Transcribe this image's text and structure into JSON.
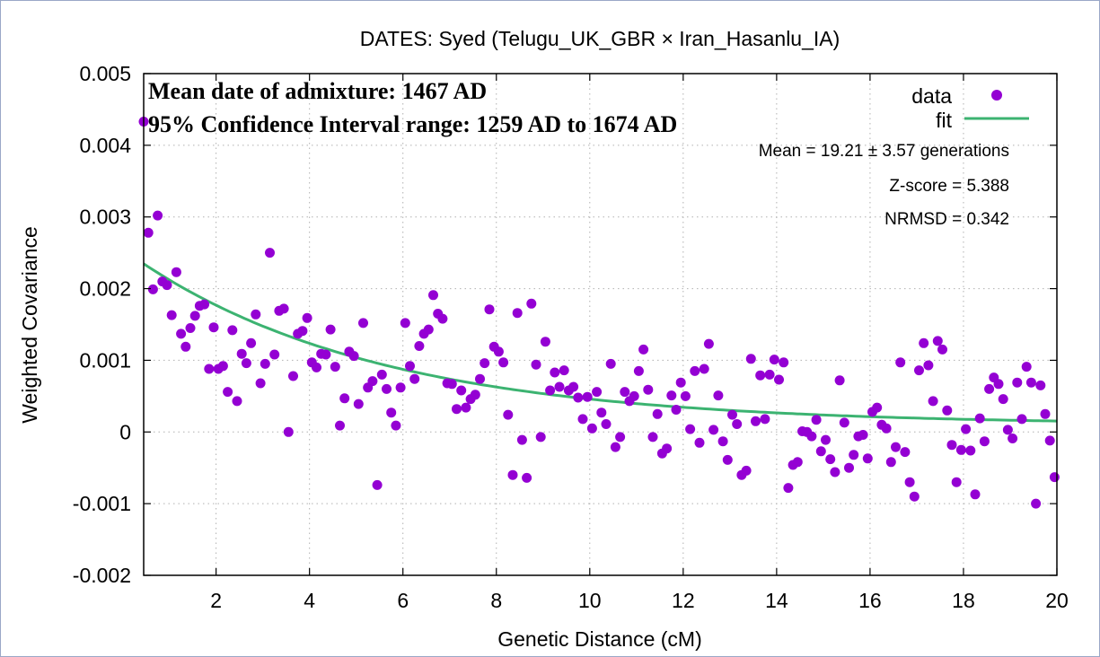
{
  "chart_data": {
    "type": "scatter",
    "title": "DATES: Syed (Telugu_UK_GBR × Iran_Hasanlu_IA)",
    "xlabel": "Genetic Distance (cM)",
    "ylabel": "Weighted Covariance",
    "xlim": [
      0.45,
      20
    ],
    "ylim": [
      -0.002,
      0.005
    ],
    "grid": true,
    "x_ticks": [
      2,
      4,
      6,
      8,
      10,
      12,
      14,
      16,
      18,
      20
    ],
    "x_tick_labels": [
      "2",
      "4",
      "6",
      "8",
      "10",
      "12",
      "14",
      "16",
      "18",
      "20"
    ],
    "y_ticks": [
      -0.002,
      -0.001,
      0,
      0.001,
      0.002,
      0.003,
      0.004,
      0.005
    ],
    "y_tick_labels": [
      "-0.002",
      "-0.001",
      "0",
      "0.001",
      "0.002",
      "0.003",
      "0.004",
      "0.005"
    ],
    "legend": {
      "placement": "top-right",
      "entries": [
        "data",
        "fit"
      ]
    },
    "annotations": {
      "admixture_date": "Mean date of admixture: 1467 AD",
      "confidence_interval": "95% Confidence Interval range: 1259 AD to 1674 AD",
      "mean": "Mean = 19.21 ± 3.57 generations",
      "zscore": "Z-score = 5.388",
      "nrmsd": "NRMSD = 0.342"
    },
    "colors": {
      "data": "#9400d3",
      "fit": "#3cb371",
      "grid": "#b0b0b0"
    },
    "fit": {
      "model": "exponential",
      "amplitude": 0.00245,
      "rate": 0.1921,
      "offset": 0.0001
    },
    "series": [
      {
        "name": "data",
        "x": [
          0.45,
          0.55,
          0.65,
          0.75,
          0.85,
          0.95,
          1.05,
          1.15,
          1.25,
          1.35,
          1.45,
          1.55,
          1.65,
          1.75,
          1.85,
          1.95,
          2.05,
          2.15,
          2.25,
          2.35,
          2.45,
          2.55,
          2.65,
          2.75,
          2.85,
          2.95,
          3.05,
          3.15,
          3.25,
          3.35,
          3.45,
          3.55,
          3.65,
          3.75,
          3.85,
          3.95,
          4.05,
          4.15,
          4.25,
          4.35,
          4.45,
          4.55,
          4.65,
          4.75,
          4.85,
          4.95,
          5.05,
          5.15,
          5.25,
          5.35,
          5.45,
          5.55,
          5.65,
          5.75,
          5.85,
          5.95,
          6.05,
          6.15,
          6.25,
          6.35,
          6.45,
          6.55,
          6.65,
          6.75,
          6.85,
          6.95,
          7.05,
          7.15,
          7.25,
          7.35,
          7.45,
          7.55,
          7.65,
          7.75,
          7.85,
          7.95,
          8.05,
          8.15,
          8.25,
          8.35,
          8.45,
          8.55,
          8.65,
          8.75,
          8.85,
          8.95,
          9.05,
          9.15,
          9.25,
          9.35,
          9.45,
          9.55,
          9.65,
          9.75,
          9.85,
          9.95,
          10.05,
          10.15,
          10.25,
          10.35,
          10.45,
          10.55,
          10.65,
          10.75,
          10.85,
          10.95,
          11.05,
          11.15,
          11.25,
          11.35,
          11.45,
          11.55,
          11.65,
          11.75,
          11.85,
          11.95,
          12.05,
          12.15,
          12.25,
          12.35,
          12.45,
          12.55,
          12.65,
          12.75,
          12.85,
          12.95,
          13.05,
          13.15,
          13.25,
          13.35,
          13.45,
          13.55,
          13.65,
          13.75,
          13.85,
          13.95,
          14.05,
          14.15,
          14.25,
          14.35,
          14.45,
          14.55,
          14.65,
          14.75,
          14.85,
          14.95,
          15.05,
          15.15,
          15.25,
          15.35,
          15.45,
          15.55,
          15.65,
          15.75,
          15.85,
          15.95,
          16.05,
          16.15,
          16.25,
          16.35,
          16.45,
          16.55,
          16.65,
          16.75,
          16.85,
          16.95,
          17.05,
          17.15,
          17.25,
          17.35,
          17.45,
          17.55,
          17.65,
          17.75,
          17.85,
          17.95,
          18.05,
          18.15,
          18.25,
          18.35,
          18.45,
          18.55,
          18.65,
          18.75,
          18.85,
          18.95,
          19.05,
          19.15,
          19.25,
          19.35,
          19.45,
          19.55,
          19.65,
          19.75,
          19.85,
          19.95
        ],
        "y": [
          0.00433,
          0.00278,
          0.00199,
          0.00302,
          0.0021,
          0.00205,
          0.00163,
          0.00223,
          0.00137,
          0.00119,
          0.00145,
          0.00162,
          0.00176,
          0.00178,
          0.00088,
          0.00146,
          0.00088,
          0.00092,
          0.00056,
          0.00142,
          0.00043,
          0.00109,
          0.00096,
          0.00124,
          0.00164,
          0.00068,
          0.00095,
          0.0025,
          0.00108,
          0.00169,
          0.00172,
          0.0,
          0.00078,
          0.00137,
          0.00141,
          0.00159,
          0.00097,
          0.0009,
          0.00109,
          0.00108,
          0.00143,
          0.00091,
          9e-05,
          0.00047,
          0.00112,
          0.00106,
          0.00039,
          0.00152,
          0.00062,
          0.00071,
          -0.00074,
          0.0008,
          0.0006,
          0.00027,
          9e-05,
          0.00062,
          0.00152,
          0.00092,
          0.00074,
          0.0012,
          0.00137,
          0.00143,
          0.00191,
          0.00165,
          0.00158,
          0.00068,
          0.00067,
          0.00032,
          0.00058,
          0.00034,
          0.00046,
          0.00052,
          0.00074,
          0.00096,
          0.00171,
          0.00119,
          0.00112,
          0.00097,
          0.00024,
          -0.0006,
          0.00166,
          -0.00011,
          -0.00064,
          0.00179,
          0.00094,
          -7e-05,
          0.00126,
          0.00058,
          0.00083,
          0.00063,
          0.00086,
          0.00058,
          0.00063,
          0.00048,
          0.00018,
          0.00049,
          5e-05,
          0.00056,
          0.00027,
          0.00011,
          0.00095,
          -0.00021,
          -7e-05,
          0.00056,
          0.00043,
          0.0005,
          0.00085,
          0.00115,
          0.00059,
          -7e-05,
          0.00025,
          -0.0003,
          -0.00023,
          0.00051,
          0.00031,
          0.00069,
          0.0005,
          4e-05,
          0.00085,
          -0.00015,
          0.00088,
          0.00123,
          3e-05,
          0.00051,
          -0.00013,
          -0.00039,
          0.00024,
          0.00011,
          -0.0006,
          -0.00054,
          0.00102,
          0.00015,
          0.00079,
          0.00018,
          0.0008,
          0.00101,
          0.00073,
          0.00097,
          -0.00078,
          -0.00046,
          -0.00042,
          1e-05,
          0.0,
          -6e-05,
          0.00017,
          -0.00027,
          -0.00011,
          -0.00038,
          -0.00056,
          0.00072,
          0.00013,
          -0.0005,
          -0.00032,
          -6e-05,
          -4e-05,
          -0.00037,
          0.00028,
          0.00034,
          0.0001,
          5e-05,
          -0.00042,
          -0.00021,
          0.00097,
          -0.00028,
          -0.0007,
          -0.0009,
          0.00086,
          0.00124,
          0.00093,
          0.00043,
          0.00127,
          0.00115,
          0.0003,
          -0.00018,
          -0.0007,
          -0.00025,
          4e-05,
          -0.00026,
          -0.00087,
          0.00019,
          -0.00013,
          0.0006,
          0.00076,
          0.00067,
          0.00046,
          3e-05,
          -9e-05,
          0.00069,
          0.00018,
          0.00091,
          0.00069,
          -0.001,
          0.00065,
          0.00025,
          -0.00012,
          -0.00063
        ]
      }
    ]
  }
}
